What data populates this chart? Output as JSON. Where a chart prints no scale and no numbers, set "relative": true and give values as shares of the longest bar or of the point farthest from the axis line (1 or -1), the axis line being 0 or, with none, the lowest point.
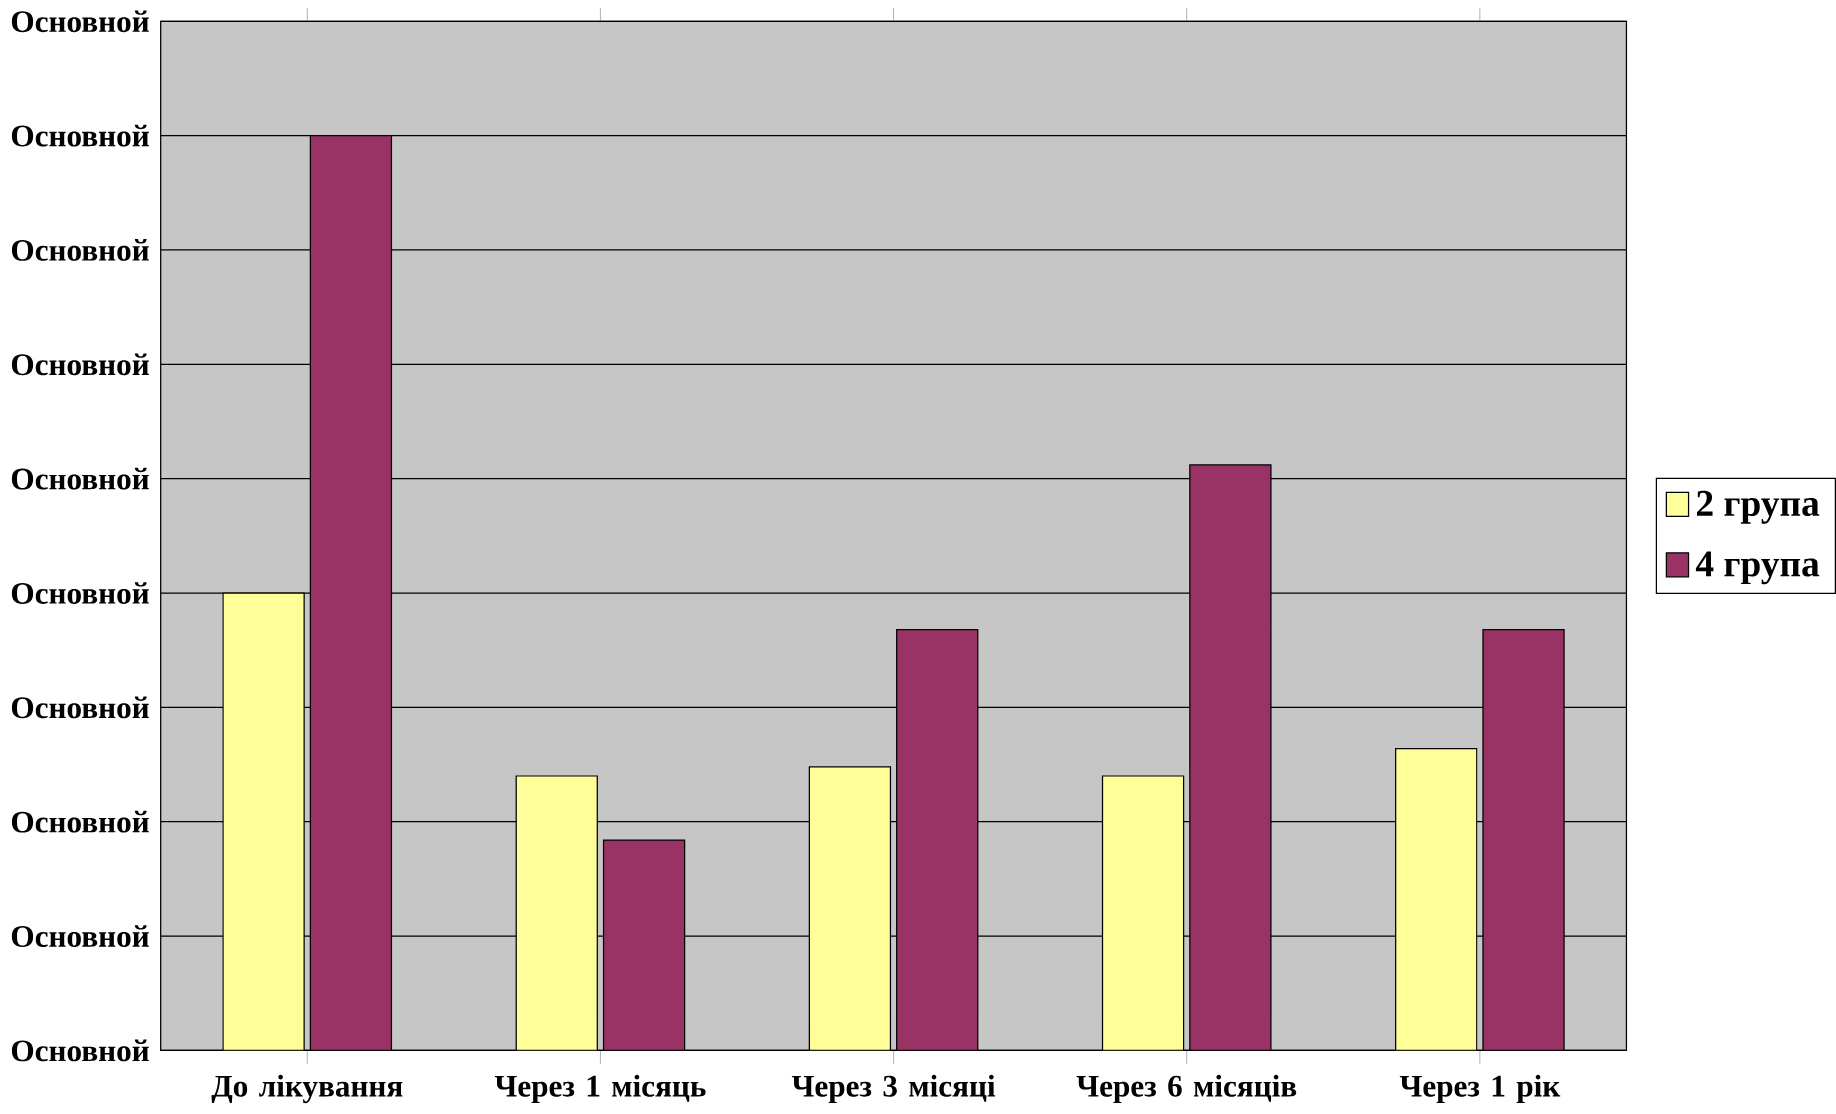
{
  "chart_data": {
    "type": "bar",
    "relative": true,
    "categories": [
      "До лікування",
      "Через 1 місяць",
      "Через 3 місяці",
      "Через 6 місяців",
      "Через 1 рік"
    ],
    "series": [
      {
        "name": "2 група",
        "color": "#ffff99",
        "values": [
          0.5,
          0.3,
          0.31,
          0.3,
          0.33
        ]
      },
      {
        "name": "4 група",
        "color": "#993366",
        "values": [
          1,
          0.23,
          0.46,
          0.64,
          0.46
        ]
      }
    ],
    "annotations": [
      "Основной",
      "Основной",
      "Основной",
      "Основной",
      "Основной",
      "Основной",
      "Основной",
      "Основной",
      "Основной",
      "Основной"
    ],
    "ylim": [
      0,
      1.125
    ],
    "grid": "y",
    "legend": "right"
  }
}
